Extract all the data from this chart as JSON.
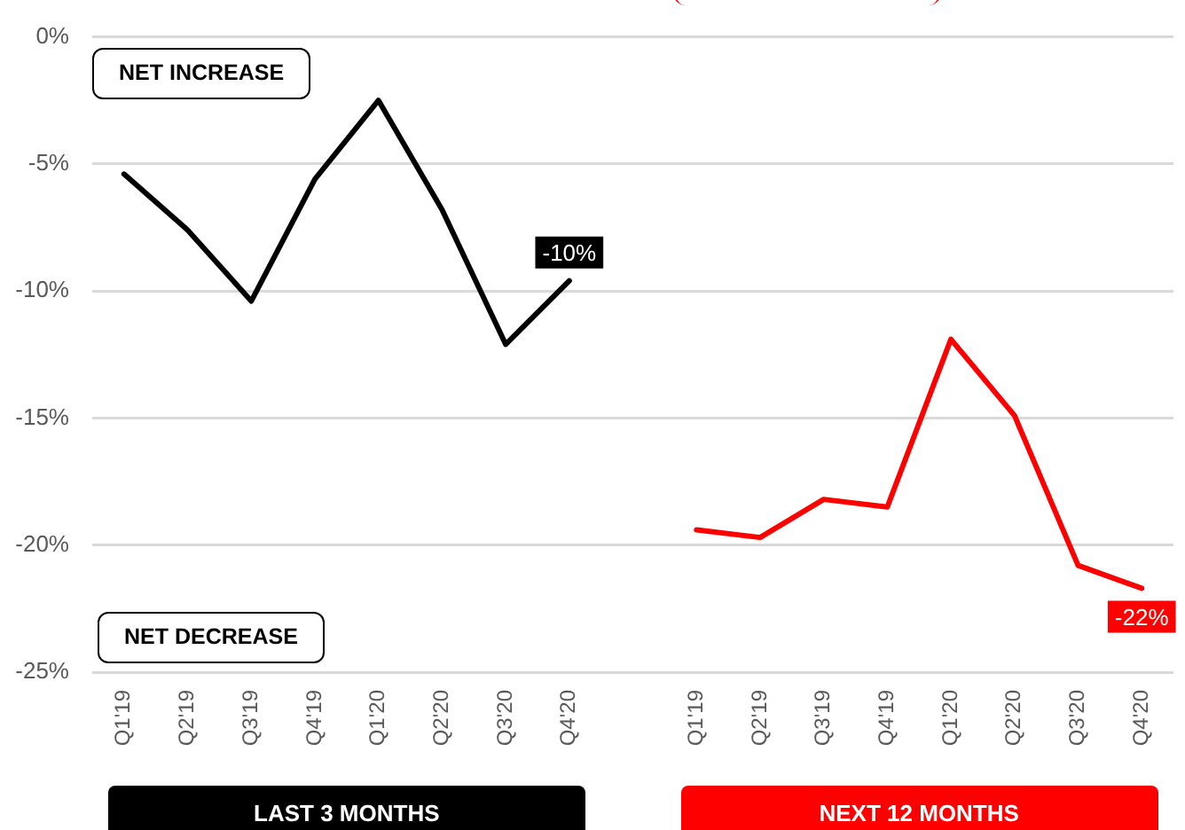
{
  "chart_data": {
    "type": "line",
    "categories": [
      "Q1'19",
      "Q2'19",
      "Q3'19",
      "Q4'19",
      "Q1'20",
      "Q2'20",
      "Q3'20",
      "Q4'20",
      null,
      "Q1'19",
      "Q2'19",
      "Q3'19",
      "Q4'19",
      "Q1'20",
      "Q2'20",
      "Q3'20",
      "Q4'20"
    ],
    "series": [
      {
        "name": "LAST 3 MONTHS",
        "color": "#000000",
        "values": [
          -5.4,
          -7.6,
          -10.4,
          -5.6,
          -2.5,
          -6.8,
          -12.1,
          -9.6,
          null,
          null,
          null,
          null,
          null,
          null,
          null,
          null,
          null
        ],
        "value_labels": [
          null,
          null,
          null,
          null,
          null,
          null,
          null,
          "-10%",
          null,
          null,
          null,
          null,
          null,
          null,
          null,
          null,
          null
        ]
      },
      {
        "name": "NEXT 12 MONTHS",
        "color": "#ff0000",
        "values": [
          null,
          null,
          null,
          null,
          null,
          null,
          null,
          null,
          null,
          -19.4,
          -19.7,
          -18.2,
          -18.5,
          -11.9,
          -14.9,
          -20.8,
          -21.7
        ],
        "value_labels": [
          null,
          null,
          null,
          null,
          null,
          null,
          null,
          null,
          null,
          null,
          null,
          null,
          null,
          null,
          null,
          null,
          "-22%"
        ]
      }
    ],
    "ylim": [
      -25,
      0
    ],
    "yticks": [
      {
        "value": 0,
        "label": "0%"
      },
      {
        "value": -5,
        "label": "-5%"
      },
      {
        "value": -10,
        "label": "-10%"
      },
      {
        "value": -15,
        "label": "-15%"
      },
      {
        "value": -20,
        "label": "-20%"
      },
      {
        "value": -25,
        "label": "-25%"
      }
    ],
    "grid": "y",
    "marker": "none",
    "line_style": "solid",
    "annotations": [
      "NET INCREASE",
      "NET DECREASE"
    ]
  }
}
